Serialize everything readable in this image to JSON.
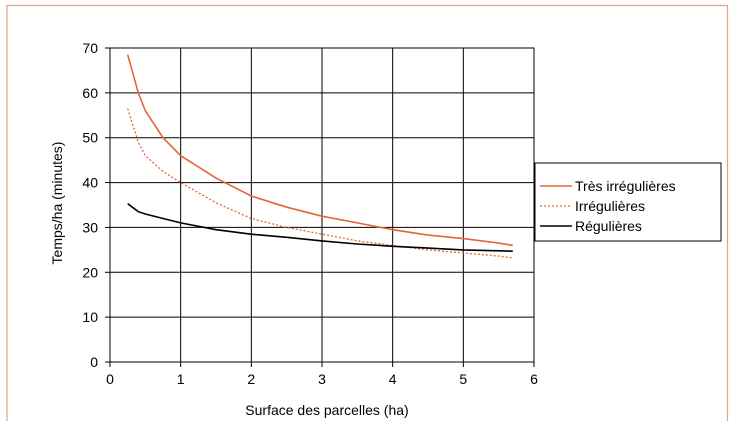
{
  "chart_data": {
    "type": "line",
    "title": "",
    "xlabel": "Surface des parcelles (ha)",
    "ylabel": "Temps/ha (minutes)",
    "xlim": [
      0,
      6
    ],
    "ylim": [
      0,
      70
    ],
    "x_ticks": [
      "0",
      "1",
      "2",
      "3",
      "4",
      "5",
      "6"
    ],
    "y_ticks": [
      "0",
      "10",
      "20",
      "30",
      "40",
      "50",
      "60",
      "70"
    ],
    "grid": true,
    "legend_position": "right",
    "series": [
      {
        "name": "Très irrégulières",
        "color": "#e0673a",
        "style": "solid",
        "x": [
          0.25,
          0.4,
          0.5,
          0.75,
          1.0,
          1.5,
          2.0,
          2.5,
          3.0,
          3.5,
          4.0,
          4.5,
          5.0,
          5.5,
          5.7
        ],
        "y": [
          68.5,
          60,
          56,
          50,
          46,
          41,
          37,
          34.5,
          32.5,
          31,
          29.5,
          28.3,
          27.5,
          26.5,
          26
        ]
      },
      {
        "name": "Irrégulières",
        "color": "#e0673a",
        "style": "dotted",
        "x": [
          0.25,
          0.4,
          0.5,
          0.75,
          1.0,
          1.5,
          2.0,
          2.5,
          3.0,
          3.5,
          4.0,
          4.5,
          5.0,
          5.5,
          5.7
        ],
        "y": [
          56.5,
          49,
          46,
          42.5,
          40,
          35.5,
          32,
          30,
          28.5,
          27,
          26,
          25,
          24.3,
          23.6,
          23.2
        ]
      },
      {
        "name": "Régulières",
        "color": "#000000",
        "style": "solid",
        "x": [
          0.25,
          0.4,
          0.5,
          0.75,
          1.0,
          1.5,
          2.0,
          2.5,
          3.0,
          3.5,
          4.0,
          4.5,
          5.0,
          5.5,
          5.7
        ],
        "y": [
          35.3,
          33.5,
          33,
          32,
          31,
          29.5,
          28.5,
          27.8,
          27,
          26.3,
          25.8,
          25.4,
          25,
          24.8,
          24.7
        ]
      }
    ]
  }
}
